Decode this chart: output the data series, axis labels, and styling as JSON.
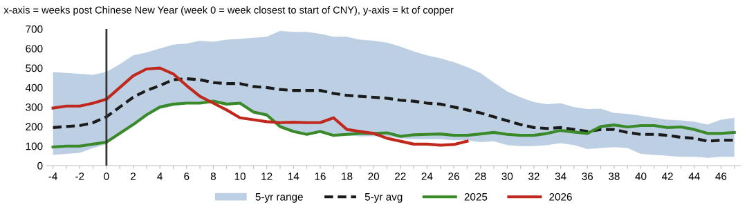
{
  "chart_data": {
    "type": "line",
    "title": "x-axis = weeks post Chinese New Year (week 0 = week closest to start of CNY), y-axis = kt of copper",
    "annotations": [
      "5-yr range"
    ],
    "x": [
      -4,
      -3,
      -2,
      -1,
      0,
      1,
      2,
      3,
      4,
      5,
      6,
      7,
      8,
      9,
      10,
      11,
      12,
      13,
      14,
      15,
      16,
      17,
      18,
      19,
      20,
      21,
      22,
      23,
      24,
      25,
      26,
      27,
      28,
      29,
      30,
      31,
      32,
      33,
      34,
      35,
      36,
      37,
      38,
      39,
      40,
      41,
      42,
      43,
      44,
      45,
      46,
      47
    ],
    "series": [
      {
        "name": "5-yr avg",
        "color": "#1a1a1a",
        "line_style": "dashed",
        "values": [
          195,
          200,
          205,
          220,
          250,
          300,
          350,
          385,
          410,
          440,
          445,
          440,
          425,
          420,
          420,
          405,
          400,
          390,
          385,
          385,
          385,
          370,
          360,
          355,
          350,
          345,
          335,
          330,
          320,
          315,
          300,
          285,
          270,
          250,
          230,
          210,
          195,
          190,
          195,
          185,
          175,
          185,
          185,
          170,
          160,
          160,
          155,
          145,
          140,
          125,
          130,
          130
        ],
        "upper": [
          480,
          475,
          470,
          465,
          480,
          520,
          565,
          580,
          600,
          620,
          625,
          640,
          635,
          645,
          650,
          655,
          660,
          690,
          685,
          685,
          675,
          660,
          660,
          645,
          640,
          630,
          610,
          585,
          565,
          550,
          530,
          505,
          475,
          425,
          380,
          350,
          325,
          315,
          320,
          300,
          290,
          292,
          270,
          265,
          255,
          245,
          235,
          232,
          225,
          210,
          235,
          245
        ],
        "lower": [
          55,
          60,
          65,
          90,
          110,
          165,
          210,
          255,
          290,
          305,
          315,
          315,
          320,
          315,
          315,
          265,
          250,
          195,
          170,
          155,
          170,
          150,
          155,
          150,
          150,
          150,
          140,
          135,
          135,
          135,
          130,
          130,
          120,
          125,
          105,
          100,
          100,
          105,
          115,
          105,
          85,
          90,
          95,
          90,
          60,
          55,
          50,
          45,
          45,
          40,
          45,
          45
        ]
      },
      {
        "name": "2025",
        "color": "#3a8a2a",
        "line_style": "solid",
        "values": [
          95,
          100,
          100,
          110,
          120,
          165,
          210,
          260,
          300,
          315,
          320,
          320,
          330,
          315,
          320,
          275,
          260,
          200,
          175,
          160,
          175,
          155,
          160,
          165,
          165,
          168,
          150,
          158,
          160,
          162,
          155,
          155,
          162,
          170,
          160,
          155,
          155,
          165,
          180,
          172,
          165,
          200,
          208,
          198,
          205,
          205,
          195,
          198,
          185,
          165,
          165,
          170
        ]
      },
      {
        "name": "2026",
        "color": "#c0281e",
        "line_style": "solid",
        "values": [
          295,
          305,
          305,
          320,
          340,
          400,
          460,
          495,
          500,
          470,
          410,
          355,
          320,
          285,
          245,
          235,
          225,
          220,
          222,
          220,
          220,
          245,
          185,
          175,
          165,
          140,
          125,
          110,
          110,
          105,
          108,
          125,
          null,
          null,
          null,
          null,
          null,
          null,
          null,
          null,
          null,
          null,
          null,
          null,
          null,
          null,
          null,
          null,
          null,
          null,
          null,
          null
        ]
      }
    ],
    "xlim": [
      -4.5,
      47.5
    ],
    "xticks": [
      -4,
      {
        "value": -3,
        "label": null
      },
      -2,
      {
        "value": -1,
        "label": null
      },
      0,
      {
        "value": 1,
        "label": null
      },
      2,
      {
        "value": 3,
        "label": null
      },
      4,
      {
        "value": 5,
        "label": null
      },
      6,
      {
        "value": 7,
        "label": null
      },
      8,
      {
        "value": 9,
        "label": null
      },
      10,
      {
        "value": 11,
        "label": null
      },
      12,
      {
        "value": 13,
        "label": null
      },
      14,
      {
        "value": 15,
        "label": null
      },
      16,
      {
        "value": 17,
        "label": null
      },
      18,
      {
        "value": 19,
        "label": null
      },
      20,
      {
        "value": 21,
        "label": null
      },
      22,
      {
        "value": 23,
        "label": null
      },
      24,
      {
        "value": 25,
        "label": null
      },
      26,
      {
        "value": 27,
        "label": null
      },
      28,
      {
        "value": 29,
        "label": null
      },
      30,
      {
        "value": 31,
        "label": null
      },
      32,
      {
        "value": 33,
        "label": null
      },
      34,
      {
        "value": 35,
        "label": null
      },
      36,
      {
        "value": 37,
        "label": null
      },
      38,
      {
        "value": 39,
        "label": null
      },
      40,
      {
        "value": 41,
        "label": null
      },
      42,
      {
        "value": 43,
        "label": null
      },
      44,
      {
        "value": 45,
        "label": null
      },
      46,
      {
        "value": 47,
        "label": null
      }
    ],
    "ylim": [
      0,
      700
    ],
    "yticks": [
      0,
      100,
      200,
      300,
      400,
      500,
      600,
      700
    ],
    "ref_lines": [
      {
        "axis": "x",
        "value": 0,
        "color": "#333333",
        "line_style": "solid"
      }
    ],
    "grid": false,
    "legend": "bottom"
  }
}
